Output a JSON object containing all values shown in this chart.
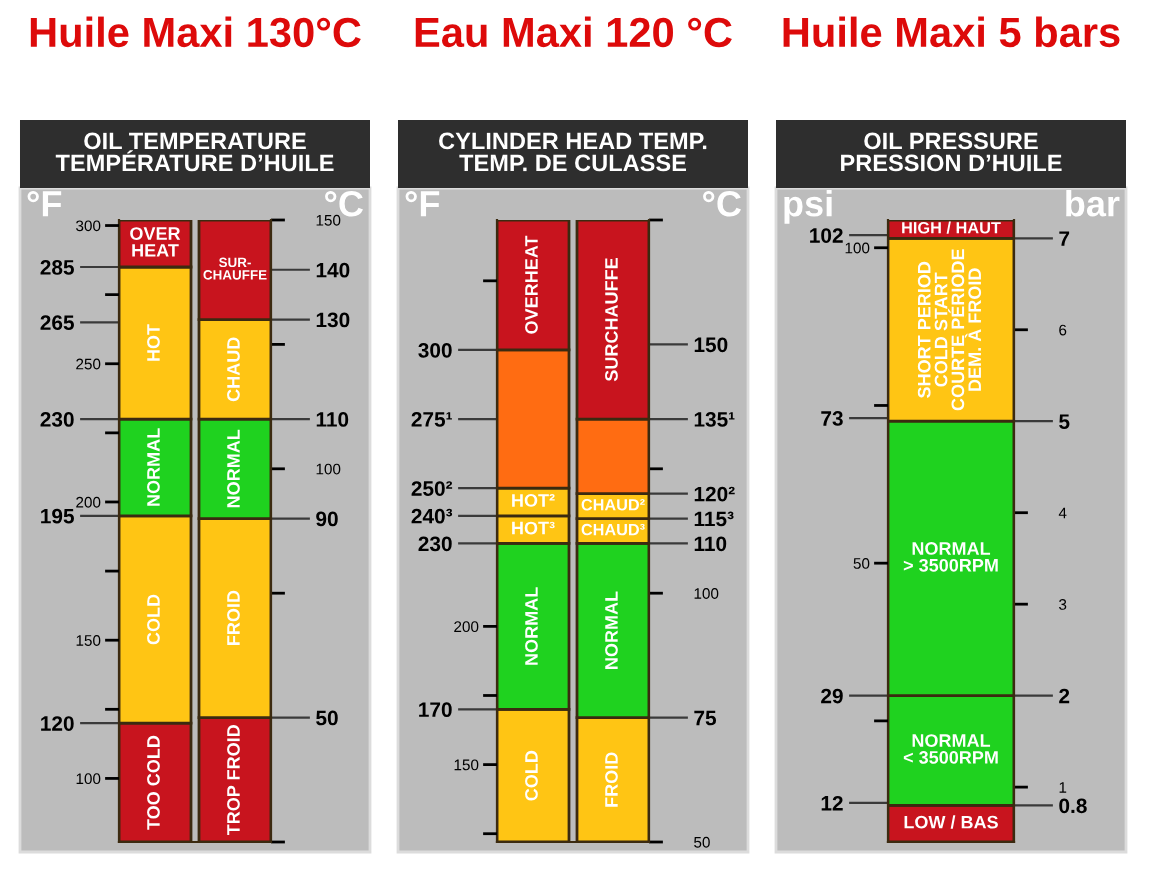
{
  "chart_data": [
    {
      "type": "bar",
      "title": "Huile Maxi 130°C",
      "subtitle": "OIL TEMPERATURE\nTEMPÉRATURE D’HUILE",
      "ylabel": "°F",
      "y2label": "°C",
      "categories": [
        null,
        null
      ],
      "ylim": [
        77,
        302
      ],
      "yticks": [
        285,
        265,
        230,
        195,
        120
      ],
      "y3lim": [
        77,
        302
      ],
      "y3ticks": [
        300,
        {
          "value": 275,
          "label": null
        },
        250,
        {
          "value": 225,
          "label": null
        },
        200,
        {
          "value": 175,
          "label": null
        },
        150,
        {
          "value": 125,
          "label": null
        },
        100
      ],
      "y2lim": [
        25,
        150
      ],
      "y2ticks": [
        150,
        140,
        130,
        {
          "value": 125,
          "label": null
        },
        110,
        100,
        90,
        {
          "value": 75,
          "label": null
        },
        50,
        {
          "value": 25,
          "label": null
        }
      ],
      "series": [
        {
          "name": "TOO COLD",
          "color": "#c8141e",
          "values": [
            43,
            null
          ],
          "base": [
            77,
            null
          ]
        },
        {
          "name": "COLD",
          "color": "#ffc514",
          "values": [
            75,
            null
          ],
          "base": [
            120,
            null
          ]
        },
        {
          "name": "NORMAL",
          "color": "#1fd21f",
          "values": [
            35,
            null
          ],
          "base": [
            195,
            null
          ]
        },
        {
          "name": "HOT",
          "color": "#ffc514",
          "values": [
            55,
            null
          ],
          "base": [
            230,
            null
          ]
        },
        {
          "name": "OVER\nHEAT",
          "color": "#c8141e",
          "values": [
            17,
            null
          ],
          "base": [
            285,
            null
          ]
        },
        {
          "name": "TROP FROID",
          "color": "#c8141e",
          "values": [
            null,
            25
          ],
          "base": [
            null,
            25
          ],
          "axis": "y2"
        },
        {
          "name": "FROID",
          "color": "#ffc514",
          "values": [
            null,
            40
          ],
          "base": [
            null,
            50
          ],
          "axis": "y2"
        },
        {
          "name": "NORMAL",
          "color": "#1fd21f",
          "values": [
            null,
            20
          ],
          "base": [
            null,
            90
          ],
          "axis": "y2"
        },
        {
          "name": "CHAUD",
          "color": "#ffc514",
          "values": [
            null,
            20
          ],
          "base": [
            null,
            110
          ],
          "axis": "y2"
        },
        {
          "name": "SUR-\nCHAUFFE",
          "color": "#c8141e",
          "values": [
            null,
            20
          ],
          "base": [
            null,
            130
          ],
          "axis": "y2"
        }
      ]
    },
    {
      "type": "bar",
      "title": "Eau Maxi 120 °C",
      "subtitle": "CYLINDER HEAD TEMP.\nTEMP. DE CULASSE",
      "ylabel": "°F",
      "y2label": "°C",
      "categories": [
        null,
        null
      ],
      "ylim": [
        122,
        347
      ],
      "yticks": [
        300,
        {
          "value": 275,
          "label": "275¹"
        },
        {
          "value": 250,
          "label": "250²"
        },
        {
          "value": 240,
          "label": "240³"
        },
        230,
        170
      ],
      "y3lim": [
        122,
        347
      ],
      "y3ticks": [
        {
          "value": 325,
          "label": null
        },
        200,
        {
          "value": 175,
          "label": null
        },
        150,
        {
          "value": 125,
          "label": null
        }
      ],
      "y2lim": [
        50,
        175
      ],
      "y2ticks": [
        {
          "value": 175,
          "label": null
        },
        150,
        {
          "value": 135,
          "label": "135¹"
        },
        {
          "value": 125,
          "label": null
        },
        {
          "value": 120,
          "label": "120²"
        },
        {
          "value": 115,
          "label": "115³"
        },
        110,
        100,
        75,
        50
      ],
      "series": [
        {
          "name": "COLD",
          "color": "#ffc514",
          "values": [
            48,
            null
          ],
          "base": [
            122,
            null
          ]
        },
        {
          "name": "NORMAL",
          "color": "#1fd21f",
          "values": [
            60,
            null
          ],
          "base": [
            170,
            null
          ]
        },
        {
          "name": "HOT³",
          "color": "#ffc514",
          "values": [
            10,
            null
          ],
          "base": [
            230,
            null
          ]
        },
        {
          "name": "HOT²",
          "color": "#ffc514",
          "values": [
            10,
            null
          ],
          "base": [
            240,
            null
          ]
        },
        {
          "color": "#ff6c12",
          "values": [
            50,
            null
          ],
          "base": [
            250,
            null
          ]
        },
        {
          "name": "OVERHEAT",
          "color": "#c8141e",
          "values": [
            47,
            null
          ],
          "base": [
            300,
            null
          ]
        },
        {
          "name": "FROID",
          "color": "#ffc514",
          "values": [
            null,
            25
          ],
          "base": [
            null,
            50
          ],
          "axis": "y2"
        },
        {
          "name": "NORMAL",
          "color": "#1fd21f",
          "values": [
            null,
            35
          ],
          "base": [
            null,
            75
          ],
          "axis": "y2"
        },
        {
          "name": "CHAUD³",
          "color": "#ffc514",
          "values": [
            null,
            5
          ],
          "base": [
            null,
            110
          ],
          "axis": "y2"
        },
        {
          "name": "CHAUD²",
          "color": "#ffc514",
          "values": [
            null,
            5
          ],
          "base": [
            null,
            115
          ],
          "axis": "y2"
        },
        {
          "color": "#ff6c12",
          "values": [
            null,
            15
          ],
          "base": [
            null,
            120
          ],
          "axis": "y2"
        },
        {
          "name": "SURCHAUFFE",
          "color": "#c8141e",
          "values": [
            null,
            40
          ],
          "base": [
            null,
            135
          ],
          "axis": "y2"
        }
      ]
    },
    {
      "type": "bar",
      "title": "Huile Maxi 5 bars",
      "subtitle": "OIL PRESSURE\nPRESSION D’HUILE",
      "ylabel": "psi",
      "y2label": "bar",
      "categories": [
        null
      ],
      "ylim": [
        5.8,
        104.4
      ],
      "yticks": [
        102,
        73,
        29,
        12
      ],
      "y3lim": [
        5.8,
        104.4
      ],
      "y3ticks": [
        100,
        {
          "value": 75,
          "label": null
        },
        50,
        {
          "value": 25,
          "label": null
        }
      ],
      "y2lim": [
        0.4,
        7.2
      ],
      "y2ticks": [
        7,
        6,
        5,
        4,
        3,
        2,
        1,
        0.8
      ],
      "series": [
        {
          "name": "LOW / BAS",
          "color": "#c8141e",
          "values": [
            0.4
          ],
          "base": [
            0.4
          ],
          "axis": "y2"
        },
        {
          "name": "NORMAL\n< 3500RPM",
          "color": "#1fd21f",
          "values": [
            1.2
          ],
          "base": [
            0.8
          ],
          "axis": "y2"
        },
        {
          "name": "NORMAL\n> 3500RPM",
          "color": "#1fd21f",
          "values": [
            3
          ],
          "base": [
            2
          ],
          "axis": "y2"
        },
        {
          "name": "SHORT PERIOD\nCOLD START\nCOURTE PÉRIODE\nDEM. À FROID",
          "color": "#ffc514",
          "values": [
            2
          ],
          "base": [
            5
          ],
          "axis": "y2"
        },
        {
          "name": "HIGH / HAUT",
          "color": "#c8141e",
          "values": [
            0.2
          ],
          "base": [
            7
          ],
          "axis": "y2"
        }
      ]
    }
  ]
}
